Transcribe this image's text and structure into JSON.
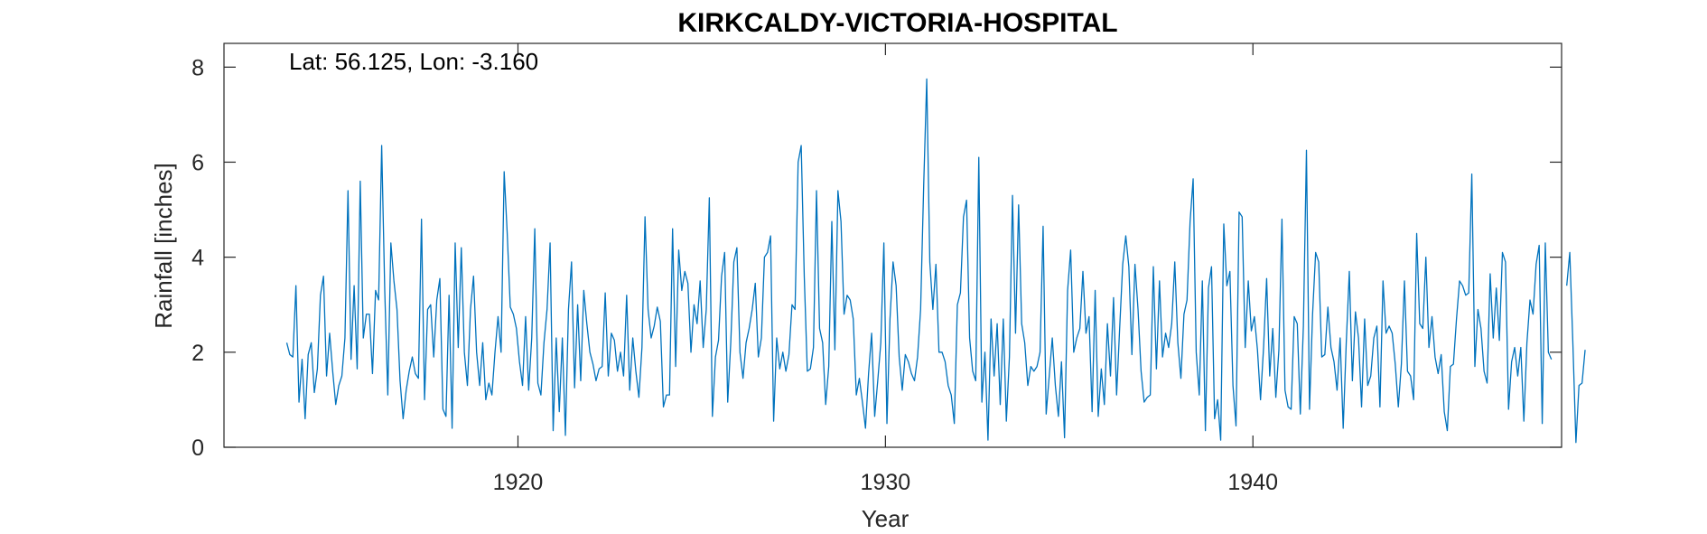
{
  "chart_data": {
    "type": "line",
    "title": "KIRKCALDY-VICTORIA-HOSPITAL",
    "annotation": "Lat: 56.125, Lon: -3.160",
    "xlabel": "Year",
    "ylabel": "Rainfall [inches]",
    "xlim": [
      1912,
      1948.4
    ],
    "ylim": [
      0,
      8.5
    ],
    "xticks": [
      1920,
      1930,
      1940
    ],
    "yticks": [
      0,
      2,
      4,
      6,
      8
    ],
    "grid": false,
    "series": [
      {
        "color": "#0072BD",
        "x_start": 1913.708,
        "x_step": 0.08333,
        "values": [
          2.2,
          1.95,
          1.9,
          3.4,
          0.95,
          1.85,
          0.6,
          1.95,
          2.2,
          1.15,
          1.65,
          3.2,
          3.6,
          1.5,
          2.4,
          1.6,
          0.9,
          1.3,
          1.5,
          2.3,
          5.4,
          1.85,
          3.4,
          1.65,
          5.6,
          2.3,
          2.8,
          2.8,
          1.55,
          3.3,
          3.1,
          6.35,
          3.3,
          1.1,
          4.3,
          3.5,
          2.9,
          1.4,
          0.6,
          1.2,
          1.6,
          1.9,
          1.55,
          1.45,
          4.8,
          1.0,
          2.9,
          3.0,
          1.9,
          3.1,
          3.55,
          0.8,
          0.65,
          3.2,
          0.4,
          4.3,
          2.1,
          4.2,
          2.0,
          1.3,
          2.9,
          3.6,
          2.0,
          1.3,
          2.2,
          1.0,
          1.35,
          1.1,
          2.0,
          2.75,
          2.0,
          5.8,
          4.5,
          2.95,
          2.8,
          2.5,
          1.8,
          1.3,
          2.75,
          1.2,
          2.3,
          4.6,
          1.35,
          1.1,
          2.2,
          2.9,
          4.3,
          0.35,
          2.3,
          0.75,
          2.3,
          0.25,
          2.9,
          3.9,
          1.25,
          3.0,
          1.4,
          3.3,
          2.6,
          2.0,
          1.75,
          1.4,
          1.65,
          1.7,
          3.25,
          1.5,
          2.4,
          2.25,
          1.6,
          2.0,
          1.5,
          3.2,
          1.2,
          2.3,
          1.6,
          1.05,
          2.1,
          4.85,
          2.9,
          2.3,
          2.55,
          2.95,
          2.65,
          0.85,
          1.1,
          1.1,
          4.6,
          1.7,
          4.15,
          3.3,
          3.7,
          3.45,
          2.0,
          3.0,
          2.6,
          3.5,
          2.1,
          2.9,
          5.25,
          0.65,
          1.9,
          2.25,
          3.6,
          4.1,
          0.95,
          2.2,
          3.9,
          4.2,
          2.0,
          1.45,
          2.2,
          2.5,
          2.9,
          3.45,
          1.9,
          2.3,
          4.0,
          4.1,
          4.45,
          0.55,
          2.3,
          1.65,
          2.0,
          1.6,
          1.95,
          3.0,
          2.9,
          6.0,
          6.35,
          3.6,
          1.6,
          1.65,
          2.1,
          5.4,
          2.5,
          2.2,
          0.9,
          1.7,
          4.75,
          2.05,
          5.4,
          4.75,
          2.8,
          3.2,
          3.1,
          2.7,
          1.1,
          1.45,
          0.95,
          0.4,
          1.55,
          2.4,
          0.65,
          1.4,
          2.2,
          4.3,
          0.5,
          2.7,
          3.9,
          3.4,
          1.9,
          1.2,
          1.95,
          1.8,
          1.55,
          1.4,
          1.9,
          2.9,
          5.5,
          7.75,
          3.9,
          2.9,
          3.85,
          2.0,
          2.0,
          1.8,
          1.3,
          1.1,
          0.5,
          3.0,
          3.25,
          4.85,
          5.2,
          2.3,
          1.6,
          1.4,
          6.1,
          0.95,
          2.0,
          0.15,
          2.7,
          1.5,
          2.6,
          0.9,
          2.7,
          0.55,
          1.9,
          5.3,
          2.4,
          5.1,
          2.6,
          2.2,
          1.3,
          1.7,
          1.6,
          1.7,
          2.0,
          4.65,
          0.7,
          1.5,
          2.3,
          1.3,
          0.65,
          1.8,
          0.2,
          3.3,
          4.15,
          2.0,
          2.3,
          2.5,
          3.7,
          2.4,
          2.75,
          0.75,
          3.3,
          0.65,
          1.65,
          0.9,
          2.6,
          1.5,
          3.15,
          1.1,
          2.5,
          3.85,
          4.45,
          3.8,
          1.95,
          3.85,
          2.9,
          1.6,
          0.95,
          1.05,
          1.1,
          3.8,
          1.65,
          3.5,
          1.9,
          2.4,
          2.1,
          2.6,
          3.9,
          2.2,
          1.45,
          2.8,
          3.1,
          4.75,
          5.65,
          2.0,
          1.1,
          3.5,
          0.35,
          3.35,
          3.8,
          0.6,
          1.0,
          0.15,
          4.7,
          3.4,
          3.7,
          1.3,
          0.45,
          4.95,
          4.85,
          2.1,
          3.5,
          2.45,
          2.75,
          2.05,
          1.0,
          2.1,
          3.55,
          1.5,
          2.5,
          1.05,
          2.05,
          4.8,
          1.2,
          0.85,
          0.8,
          2.75,
          2.6,
          0.7,
          2.55,
          6.25,
          0.8,
          2.8,
          4.1,
          3.9,
          1.9,
          1.95,
          2.95,
          2.1,
          1.8,
          1.2,
          2.3,
          0.4,
          2.2,
          3.7,
          1.4,
          2.85,
          2.3,
          0.85,
          2.7,
          1.3,
          1.5,
          2.3,
          2.55,
          0.85,
          3.5,
          2.4,
          2.55,
          2.4,
          1.75,
          0.85,
          1.75,
          3.5,
          1.6,
          1.5,
          1.0,
          4.5,
          2.6,
          2.5,
          4.0,
          2.1,
          2.75,
          1.9,
          1.55,
          1.95,
          0.75,
          0.35,
          1.7,
          1.75,
          2.7,
          3.5,
          3.4,
          3.2,
          3.25,
          5.75,
          1.7,
          2.9,
          2.5,
          1.6,
          1.35,
          3.65,
          2.3,
          3.35,
          2.25,
          4.1,
          3.9,
          0.8,
          1.8,
          2.1,
          1.5,
          2.1,
          0.55,
          2.2,
          3.1,
          2.8,
          3.85,
          4.25,
          0.5,
          4.3,
          2.0,
          1.85,
          null,
          null,
          null,
          null,
          3.4,
          4.1,
          2.2,
          0.1,
          1.3,
          1.35,
          2.05
        ]
      }
    ]
  }
}
